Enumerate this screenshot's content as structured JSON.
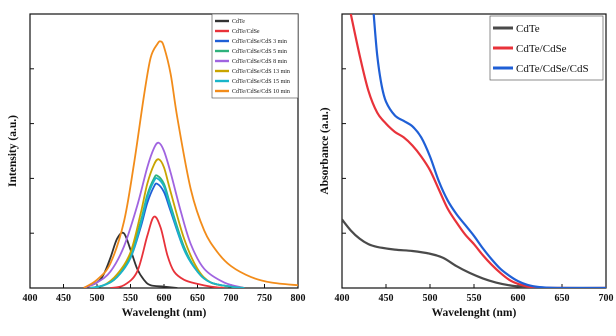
{
  "chart_data": [
    {
      "type": "line",
      "title": "",
      "xlabel": "Wavelenght (nm)",
      "ylabel": "Intensity (a.u.)",
      "xlim": [
        400,
        800
      ],
      "ylim": [
        0,
        100
      ],
      "y_tick_labels": false,
      "x_ticks": [
        "400",
        "450",
        "500",
        "550",
        "600",
        "650",
        "700",
        "750",
        "800"
      ],
      "legend_position": "top-right",
      "series": [
        {
          "name": "CdTe",
          "color": "#333333",
          "x": [
            480,
            500,
            510,
            520,
            530,
            540,
            550,
            560,
            570,
            580,
            600,
            620
          ],
          "values": [
            0,
            2,
            5,
            11,
            18,
            20,
            14,
            7,
            3,
            1,
            0.5,
            0
          ]
        },
        {
          "name": "CdTe/CdSe",
          "color": "#e8323a",
          "x": [
            520,
            540,
            560,
            575,
            585,
            595,
            605,
            615,
            630,
            650,
            670,
            690
          ],
          "values": [
            0,
            1,
            6,
            19,
            26,
            22,
            12,
            6,
            3,
            1.5,
            0.5,
            0
          ]
        },
        {
          "name": "CdTe/CdSe/CdS 3 min",
          "color": "#1f5fd6",
          "x": [
            490,
            510,
            530,
            550,
            565,
            575,
            585,
            590,
            600,
            610,
            630,
            650,
            670,
            700,
            720
          ],
          "values": [
            0,
            1,
            4,
            11,
            22,
            31,
            37,
            38,
            35,
            28,
            14,
            6,
            2,
            0.5,
            0
          ]
        },
        {
          "name": "CdTe/CdSe/CdS 5 min",
          "color": "#2fb27c",
          "x": [
            490,
            510,
            530,
            550,
            565,
            575,
            585,
            590,
            600,
            610,
            630,
            650,
            670,
            700,
            720
          ],
          "values": [
            0,
            1,
            4,
            12,
            24,
            34,
            40,
            41,
            38,
            30,
            15,
            6,
            2,
            0.5,
            0
          ]
        },
        {
          "name": "CdTe/CdSe/CdS 8 min",
          "color": "#a064e0",
          "x": [
            480,
            500,
            520,
            540,
            560,
            575,
            585,
            592,
            600,
            610,
            625,
            640,
            660,
            690,
            720
          ],
          "values": [
            0,
            2,
            6,
            15,
            30,
            44,
            51,
            53,
            50,
            42,
            28,
            16,
            7,
            2,
            0
          ]
        },
        {
          "name": "CdTe/CdSe/CdS 13 min",
          "color": "#c9a400",
          "x": [
            490,
            510,
            530,
            550,
            565,
            575,
            585,
            592,
            600,
            610,
            630,
            650,
            670,
            700,
            720
          ],
          "values": [
            0,
            1,
            5,
            13,
            27,
            38,
            45,
            47,
            44,
            35,
            18,
            7,
            2,
            0.5,
            0
          ]
        },
        {
          "name": "CdTe/CdSe/CdS 15 min",
          "color": "#19b5c9",
          "x": [
            490,
            510,
            530,
            550,
            565,
            575,
            585,
            590,
            600,
            610,
            630,
            650,
            670,
            700,
            720
          ],
          "values": [
            0,
            1,
            4,
            11,
            23,
            33,
            39,
            40,
            37,
            29,
            14,
            6,
            2,
            0.5,
            0
          ]
        },
        {
          "name": "CdTe/CdSe/CdS 10 min",
          "color": "#f28c1a",
          "x": [
            480,
            500,
            520,
            540,
            555,
            570,
            580,
            590,
            595,
            600,
            610,
            620,
            640,
            660,
            680,
            700,
            730,
            760,
            800
          ],
          "values": [
            0,
            3,
            9,
            24,
            45,
            70,
            84,
            89,
            90,
            88,
            78,
            62,
            36,
            21,
            13,
            8,
            4,
            2,
            1
          ]
        }
      ]
    },
    {
      "type": "line",
      "title": "",
      "xlabel": "Wavelenght (nm)",
      "ylabel": "Absorbance (a.u.)",
      "xlim": [
        400,
        700
      ],
      "ylim": [
        0,
        100
      ],
      "y_tick_labels": false,
      "x_ticks": [
        "400",
        "450",
        "500",
        "550",
        "600",
        "650",
        "700"
      ],
      "legend_position": "top-right",
      "series": [
        {
          "name": "CdTe",
          "color": "#4a4a4a",
          "x": [
            400,
            410,
            420,
            430,
            440,
            460,
            480,
            500,
            515,
            530,
            545,
            560,
            575,
            590,
            605,
            620,
            650,
            700
          ],
          "values": [
            25,
            21,
            18,
            16,
            15,
            14,
            13.5,
            12.5,
            11,
            8,
            5.5,
            3.5,
            2,
            1,
            0.4,
            0.1,
            0,
            0
          ]
        },
        {
          "name": "CdTe/CdSe",
          "color": "#e8323a",
          "x": [
            410,
            420,
            430,
            440,
            450,
            460,
            470,
            480,
            490,
            500,
            510,
            520,
            530,
            540,
            550,
            560,
            570,
            580,
            590,
            600,
            610,
            620,
            650,
            700
          ],
          "values": [
            100,
            85,
            72,
            64,
            60,
            57,
            55,
            52,
            48,
            43,
            36,
            29,
            24,
            19.5,
            16,
            12,
            8.5,
            5.5,
            3,
            1.5,
            0.6,
            0.2,
            0,
            0
          ]
        },
        {
          "name": "CdTe/CdSe/CdS",
          "color": "#1f5fd6",
          "x": [
            436,
            440,
            445,
            450,
            460,
            470,
            480,
            490,
            500,
            510,
            520,
            530,
            540,
            550,
            560,
            570,
            580,
            590,
            600,
            610,
            620,
            630,
            650,
            700
          ],
          "values": [
            100,
            85,
            74,
            68,
            63,
            61,
            59,
            55,
            48,
            39,
            32,
            27,
            23,
            19,
            14.5,
            10.5,
            7,
            4.5,
            2.5,
            1.2,
            0.5,
            0.2,
            0,
            0
          ]
        }
      ]
    }
  ]
}
